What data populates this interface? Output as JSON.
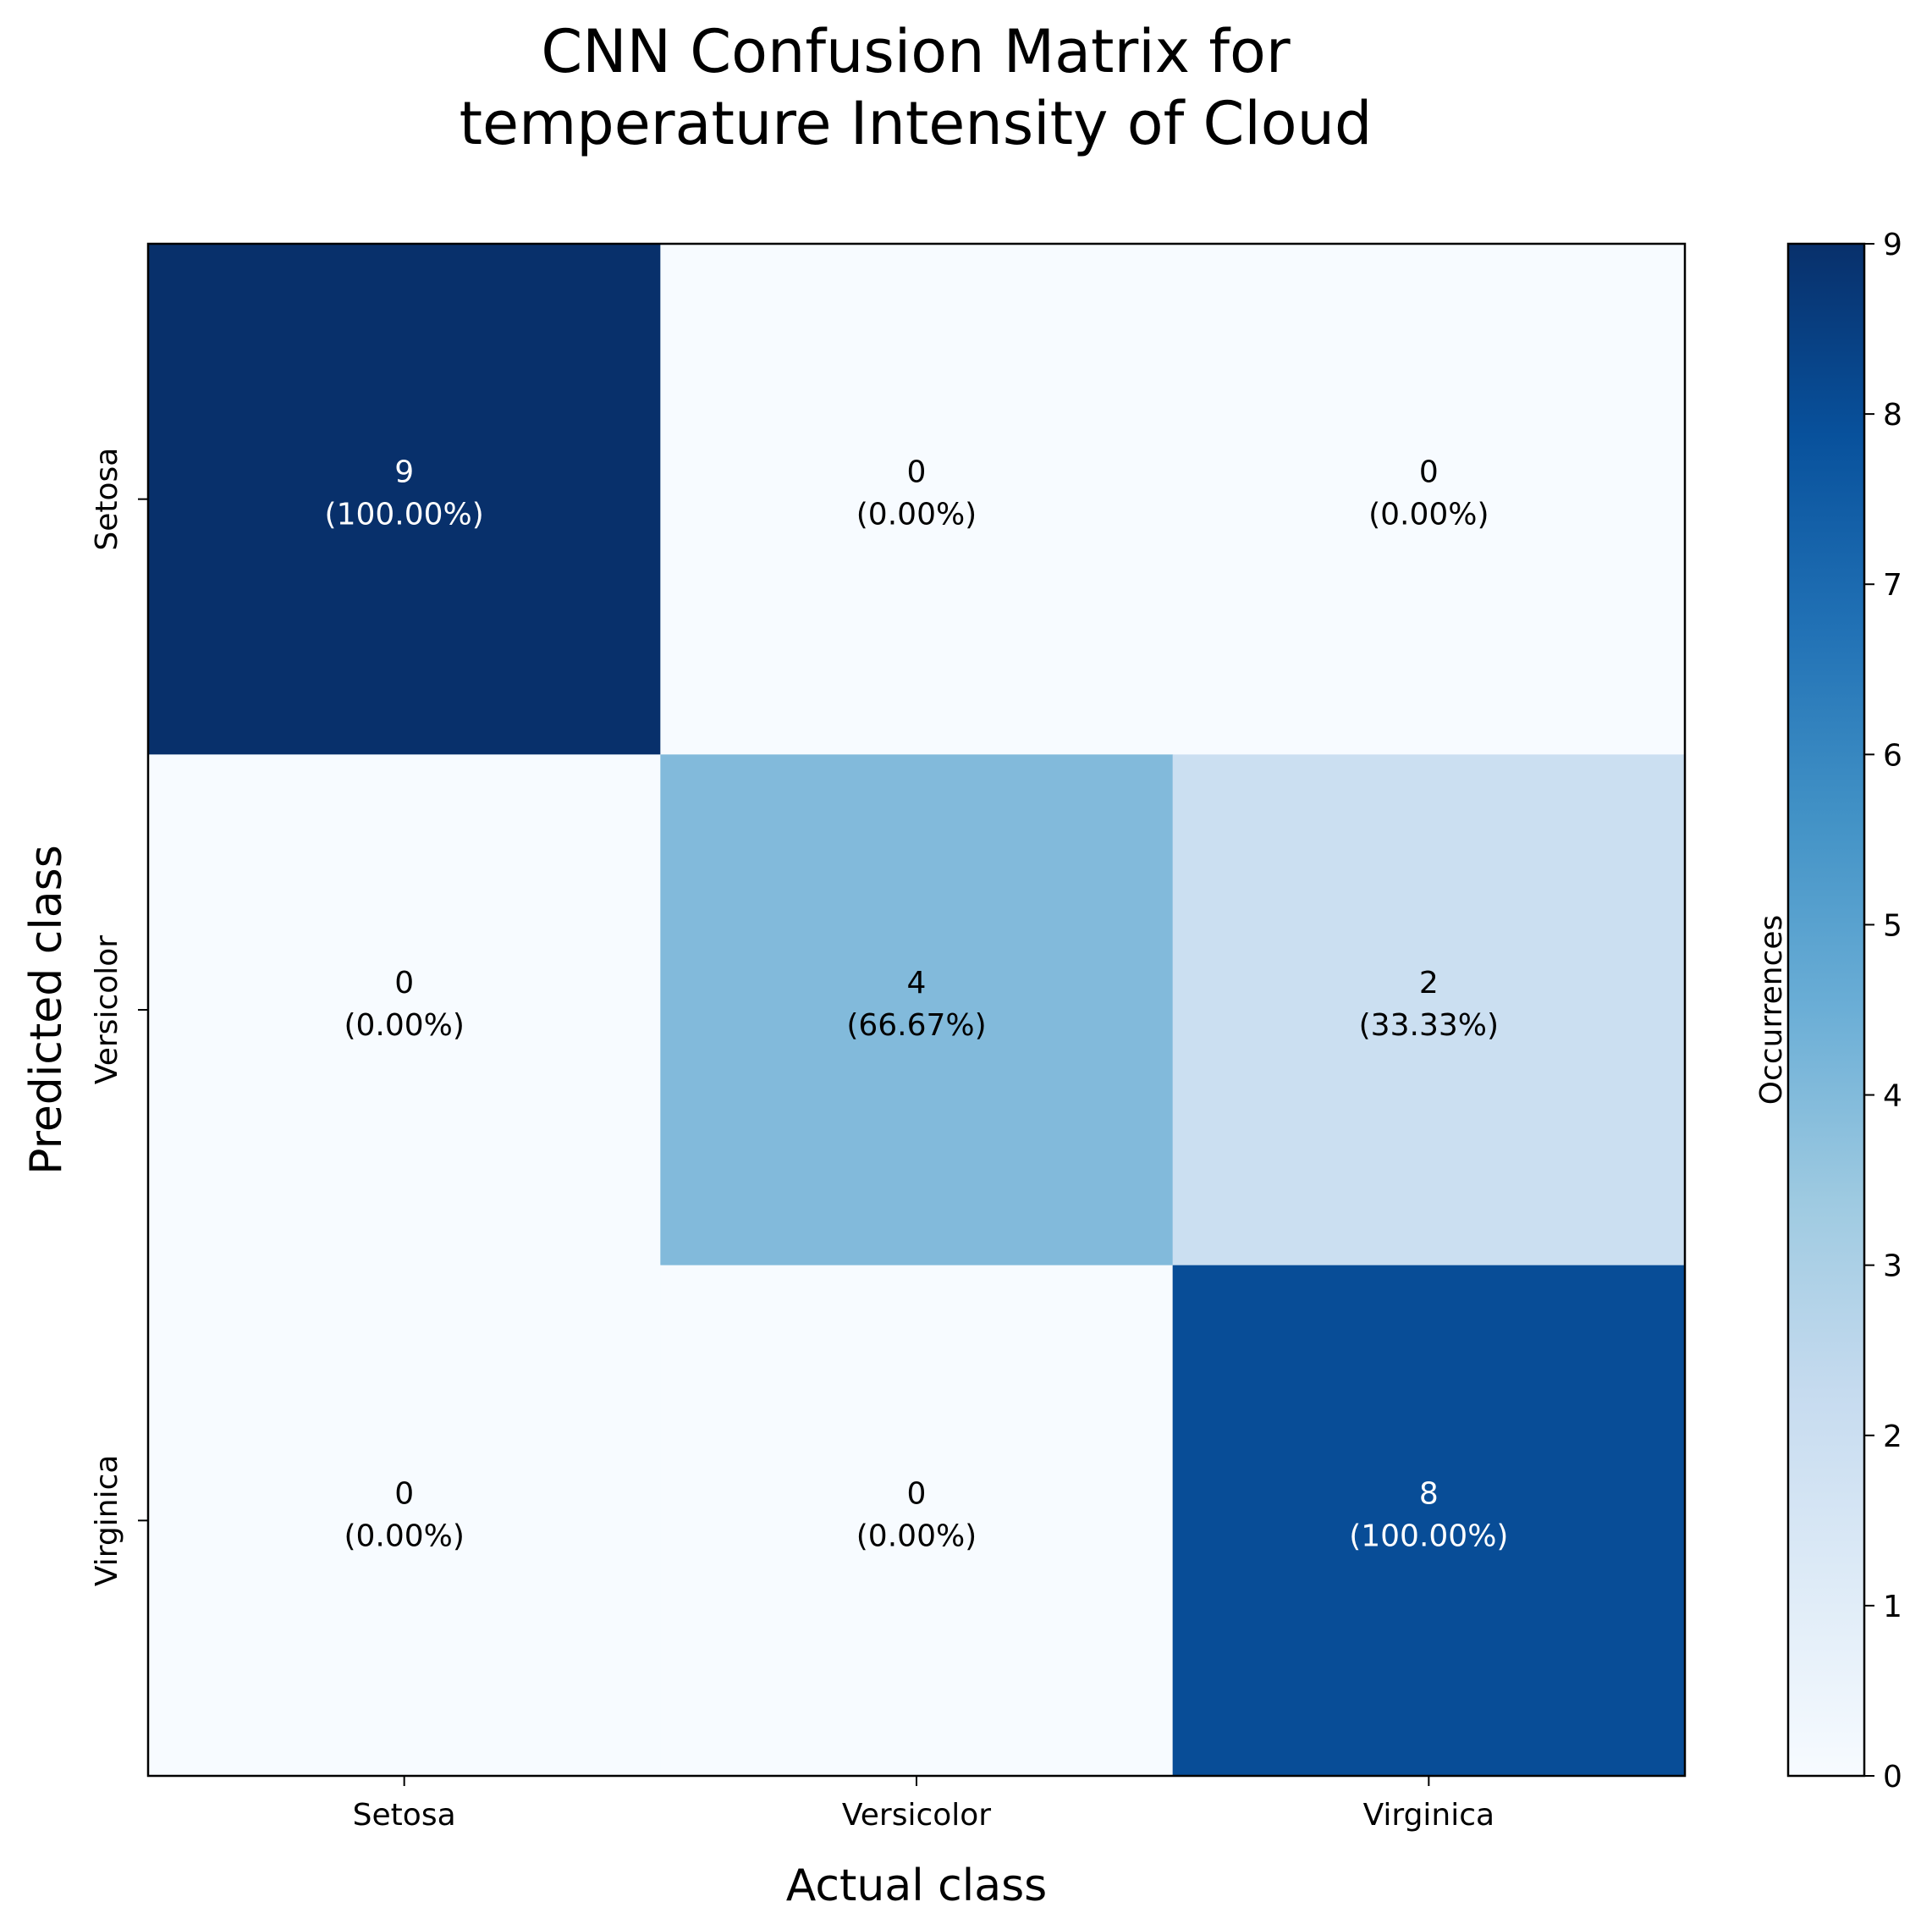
{
  "chart_data": {
    "type": "heatmap",
    "title_lines": [
      "CNN Confusion Matrix for",
      "temperature Intensity of Cloud"
    ],
    "xlabel": "Actual class",
    "ylabel": "Predicted class",
    "x_categories": [
      "Setosa",
      "Versicolor",
      "Virginica"
    ],
    "y_categories": [
      "Setosa",
      "Versicolor",
      "Virginica"
    ],
    "matrix": [
      [
        9,
        0,
        0
      ],
      [
        0,
        4,
        2
      ],
      [
        0,
        0,
        8
      ]
    ],
    "percent_labels": [
      [
        "(100.00%)",
        "(0.00%)",
        "(0.00%)"
      ],
      [
        "(0.00%)",
        "(66.67%)",
        "(33.33%)"
      ],
      [
        "(0.00%)",
        "(0.00%)",
        "(100.00%)"
      ]
    ],
    "colormap": "Blues",
    "colormap_stops": [
      "#f7fbff",
      "#deebf7",
      "#c6dbef",
      "#9ecae1",
      "#6baed6",
      "#4292c6",
      "#2171b5",
      "#08519c",
      "#08306b"
    ],
    "vmin": 0,
    "vmax": 9,
    "colorbar": {
      "label": "Occurrences",
      "ticks": [
        0,
        1,
        2,
        3,
        4,
        5,
        6,
        7,
        8,
        9
      ]
    },
    "grid": false
  }
}
